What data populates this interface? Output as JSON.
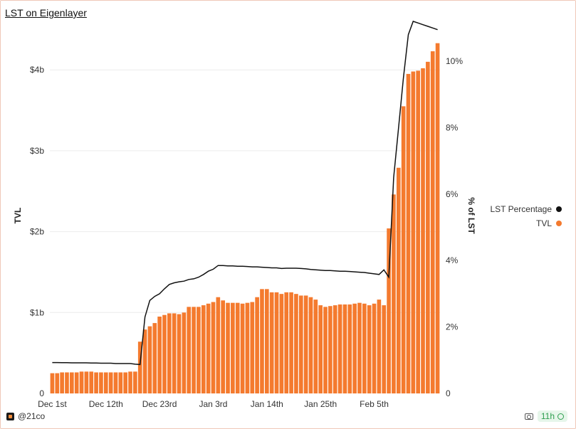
{
  "header": {
    "title": "LST on Eigenlayer"
  },
  "footer": {
    "source": "@21co",
    "age": "11h"
  },
  "icons": {
    "logo": "21co-logo-icon",
    "camera": "camera-icon",
    "status": "check-circle-icon"
  },
  "colors": {
    "bars": "#f47a2e",
    "line": "#111111",
    "grid": "#ececec"
  },
  "chart_data": {
    "type": "bar",
    "title": "LST on Eigenlayer",
    "ylabel": "TVL",
    "y2label": "% of LST",
    "ylim": [
      0,
      4.6
    ],
    "y2lim": [
      0,
      11.2
    ],
    "y_ticks": [
      "0",
      "$1b",
      "$2b",
      "$3b",
      "$4b"
    ],
    "y2_ticks": [
      "0",
      "2%",
      "4%",
      "6%",
      "8%",
      "10%"
    ],
    "x_ticks": [
      "Dec 1st",
      "Dec 12th",
      "Dec 23rd",
      "Jan 3rd",
      "Jan 14th",
      "Jan 25th",
      "Feb 5th"
    ],
    "legend_position": "right",
    "grid": true,
    "series": [
      {
        "name": "LST Percentage",
        "type": "line",
        "axis": "right",
        "values": [
          0.93,
          0.93,
          0.925,
          0.925,
          0.92,
          0.92,
          0.92,
          0.92,
          0.915,
          0.915,
          0.91,
          0.91,
          0.91,
          0.9,
          0.9,
          0.9,
          0.9,
          0.88,
          0.87,
          2.3,
          2.8,
          2.92,
          3.0,
          3.15,
          3.28,
          3.33,
          3.36,
          3.38,
          3.43,
          3.45,
          3.5,
          3.58,
          3.68,
          3.74,
          3.85,
          3.85,
          3.84,
          3.84,
          3.83,
          3.83,
          3.82,
          3.81,
          3.81,
          3.8,
          3.79,
          3.78,
          3.78,
          3.76,
          3.77,
          3.77,
          3.77,
          3.76,
          3.75,
          3.73,
          3.72,
          3.71,
          3.7,
          3.7,
          3.69,
          3.68,
          3.68,
          3.67,
          3.66,
          3.65,
          3.64,
          3.62,
          3.6,
          3.58,
          3.72,
          3.5,
          6.5,
          8.0,
          9.5,
          10.8,
          11.2,
          11.15,
          11.1,
          11.05,
          11.0,
          10.95
        ]
      },
      {
        "name": "TVL",
        "type": "bar",
        "axis": "left",
        "values": [
          0.25,
          0.25,
          0.26,
          0.26,
          0.26,
          0.26,
          0.27,
          0.27,
          0.27,
          0.26,
          0.26,
          0.26,
          0.26,
          0.26,
          0.26,
          0.26,
          0.27,
          0.27,
          0.64,
          0.79,
          0.83,
          0.87,
          0.95,
          0.97,
          0.99,
          0.99,
          0.98,
          1.0,
          1.07,
          1.07,
          1.07,
          1.09,
          1.11,
          1.13,
          1.19,
          1.15,
          1.12,
          1.12,
          1.12,
          1.11,
          1.12,
          1.13,
          1.19,
          1.29,
          1.29,
          1.25,
          1.25,
          1.23,
          1.25,
          1.25,
          1.23,
          1.21,
          1.21,
          1.19,
          1.16,
          1.09,
          1.07,
          1.08,
          1.09,
          1.1,
          1.1,
          1.1,
          1.11,
          1.12,
          1.11,
          1.09,
          1.11,
          1.16,
          1.09,
          2.04,
          2.46,
          2.79,
          3.55,
          3.95,
          3.98,
          3.99,
          4.02,
          4.1,
          4.23,
          4.33
        ]
      }
    ]
  },
  "legend": {
    "line_label": "LST Percentage",
    "bar_label": "TVL"
  }
}
